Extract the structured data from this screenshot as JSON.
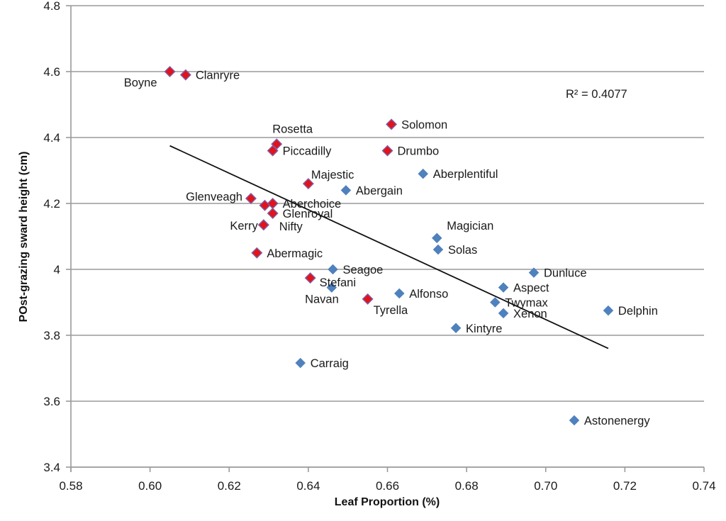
{
  "chart_data": {
    "type": "scatter",
    "title": "",
    "xlabel": "Leaf Proportion (%)",
    "ylabel": "POst-grazing sward height (cm)",
    "xlim": [
      0.58,
      0.74
    ],
    "ylim": [
      3.4,
      4.8
    ],
    "x_ticks": [
      "0.58",
      "0.60",
      "0.62",
      "0.64",
      "0.66",
      "0.68",
      "0.70",
      "0.72",
      "0.74"
    ],
    "x_tick_values": [
      0.58,
      0.6,
      0.62,
      0.64,
      0.66,
      0.68,
      0.7,
      0.72,
      0.74
    ],
    "y_ticks": [
      "3.4",
      "3.6",
      "3.8",
      "4",
      "4.2",
      "4.4",
      "4.6",
      "4.8"
    ],
    "y_tick_values": [
      3.4,
      3.6,
      3.8,
      4.0,
      4.2,
      4.4,
      4.6,
      4.8
    ],
    "grid": "horizontal",
    "legend": "none",
    "colors": {
      "red_series_fill": "#E3121B",
      "red_series_border": "#7E5FA3",
      "blue_series_fill": "#4F81BD",
      "trendline": "#111111",
      "gridline": "#9a9a9a"
    },
    "series": [
      {
        "name": "red",
        "marker": "diamond",
        "points": [
          {
            "label": "Boyne",
            "x": 0.605,
            "y": 4.6,
            "label_pos": "below-left"
          },
          {
            "label": "Clanryre",
            "x": 0.609,
            "y": 4.59,
            "label_pos": "right"
          },
          {
            "label": "Rosetta",
            "x": 0.632,
            "y": 4.38,
            "label_pos": "above"
          },
          {
            "label": "Piccadilly",
            "x": 0.631,
            "y": 4.36,
            "label_pos": "right"
          },
          {
            "label": "Solomon",
            "x": 0.661,
            "y": 4.44,
            "label_pos": "right"
          },
          {
            "label": "Drumbo",
            "x": 0.66,
            "y": 4.36,
            "label_pos": "right"
          },
          {
            "label": "Majestic",
            "x": 0.64,
            "y": 4.26,
            "label_pos": "above-right"
          },
          {
            "label": "Glenveagh",
            "x": 0.6255,
            "y": 4.215,
            "label_pos": "left"
          },
          {
            "label": "",
            "x": 0.629,
            "y": 4.194,
            "label_pos": "none"
          },
          {
            "label": "Aberchoice",
            "x": 0.631,
            "y": 4.2,
            "label_pos": "right"
          },
          {
            "label": "Glenroyal",
            "x": 0.631,
            "y": 4.17,
            "label_pos": "right"
          },
          {
            "label": "Kerry",
            "x": 0.6287,
            "y": 4.135,
            "label_pos": "left"
          },
          {
            "label": "Nifty",
            "x": 0.6287,
            "y": 4.135,
            "label_pos": "right"
          },
          {
            "label": "Abermagic",
            "x": 0.627,
            "y": 4.05,
            "label_pos": "right"
          },
          {
            "label": "Stefani",
            "x": 0.6405,
            "y": 3.974,
            "label_pos": "right"
          },
          {
            "label": "Tyrella",
            "x": 0.655,
            "y": 3.91,
            "label_pos": "below-right"
          }
        ]
      },
      {
        "name": "blue",
        "marker": "diamond",
        "points": [
          {
            "label": "Aberplentiful",
            "x": 0.669,
            "y": 4.29,
            "label_pos": "right"
          },
          {
            "label": "Abergain",
            "x": 0.6495,
            "y": 4.24,
            "label_pos": "right"
          },
          {
            "label": "Magician",
            "x": 0.6725,
            "y": 4.095,
            "label_pos": "above-right"
          },
          {
            "label": "Solas",
            "x": 0.6728,
            "y": 4.06,
            "label_pos": "right"
          },
          {
            "label": "Seagoe",
            "x": 0.6462,
            "y": 4.0,
            "label_pos": "right"
          },
          {
            "label": "Navan",
            "x": 0.6459,
            "y": 3.945,
            "label_pos": "below-left"
          },
          {
            "label": "Dunluce",
            "x": 0.697,
            "y": 3.99,
            "label_pos": "right"
          },
          {
            "label": "Aspect",
            "x": 0.6893,
            "y": 3.945,
            "label_pos": "right"
          },
          {
            "label": "Alfonso",
            "x": 0.663,
            "y": 3.927,
            "label_pos": "right"
          },
          {
            "label": "Twymax",
            "x": 0.6872,
            "y": 3.9,
            "label_pos": "right"
          },
          {
            "label": "Xenon",
            "x": 0.6893,
            "y": 3.867,
            "label_pos": "right"
          },
          {
            "label": "Delphin",
            "x": 0.7158,
            "y": 3.875,
            "label_pos": "right"
          },
          {
            "label": "Kintyre",
            "x": 0.6773,
            "y": 3.822,
            "label_pos": "right"
          },
          {
            "label": "Carraig",
            "x": 0.638,
            "y": 3.716,
            "label_pos": "right"
          },
          {
            "label": "Astonenergy",
            "x": 0.7072,
            "y": 3.542,
            "label_pos": "right"
          }
        ]
      }
    ],
    "trendline": {
      "type": "linear",
      "x_start": 0.605,
      "y_start": 4.375,
      "x_end": 0.7158,
      "y_end": 3.76,
      "r_squared_label": "R² = 0.4077"
    }
  }
}
